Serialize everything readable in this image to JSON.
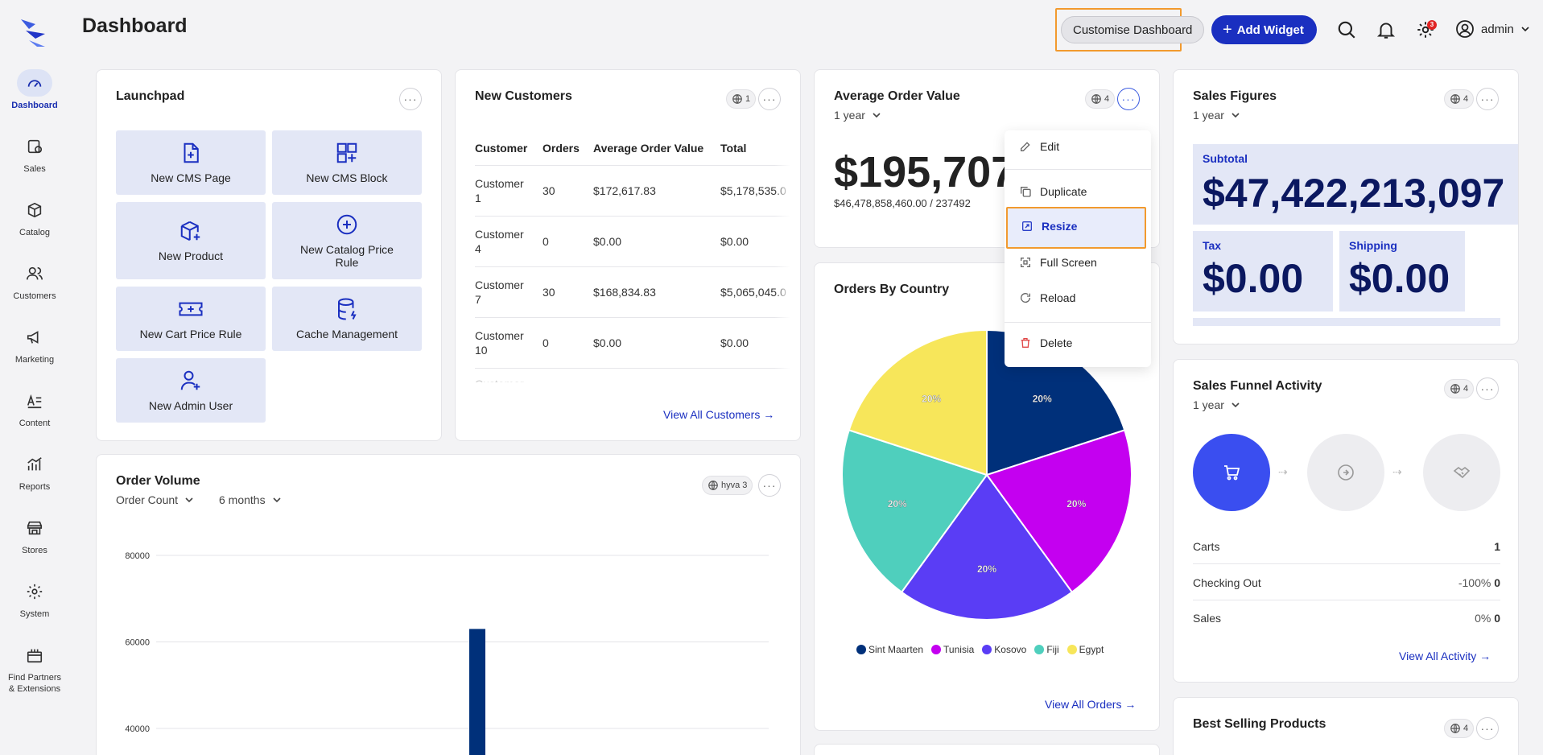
{
  "nav": {
    "items": [
      {
        "label": "Dashboard",
        "icon": "gauge-icon"
      },
      {
        "label": "Sales",
        "icon": "dollar-icon"
      },
      {
        "label": "Catalog",
        "icon": "box-icon"
      },
      {
        "label": "Customers",
        "icon": "users-icon"
      },
      {
        "label": "Marketing",
        "icon": "megaphone-icon"
      },
      {
        "label": "Content",
        "icon": "text-icon"
      },
      {
        "label": "Reports",
        "icon": "chart-icon"
      },
      {
        "label": "Stores",
        "icon": "store-icon"
      },
      {
        "label": "System",
        "icon": "gear-icon"
      },
      {
        "label": "Find Partners",
        "label2": "& Extensions",
        "icon": "gift-icon"
      }
    ]
  },
  "header": {
    "title": "Dashboard",
    "customise_label": "Customise Dashboard",
    "add_widget_label": "Add Widget",
    "notification_badge": "3",
    "user_name": "admin"
  },
  "launchpad": {
    "title": "Launchpad",
    "tiles": [
      "New CMS Page",
      "New CMS Block",
      "New Product",
      "New Catalog Price Rule",
      "New Cart Price Rule",
      "Cache Management",
      "New Admin User"
    ]
  },
  "new_customers": {
    "title": "New Customers",
    "scope_count": "1",
    "columns": [
      "Customer",
      "Orders",
      "Average Order Value",
      "Total"
    ],
    "rows": [
      [
        "Customer 1",
        "30",
        "$172,617.83",
        "$5,178,535.0"
      ],
      [
        "Customer 4",
        "0",
        "$0.00",
        "$0.00"
      ],
      [
        "Customer 7",
        "30",
        "$168,834.83",
        "$5,065,045.0"
      ],
      [
        "Customer 10",
        "0",
        "$0.00",
        "$0.00"
      ],
      [
        "Customer",
        "",
        "",
        ""
      ]
    ],
    "view_all": "View All Customers"
  },
  "aov": {
    "title": "Average Order Value",
    "scope_count": "4",
    "period": "1 year",
    "value": "$195,707",
    "sub": "$46,478,858,460.00 / 237492"
  },
  "context_menu": {
    "items": [
      "Edit",
      "Duplicate",
      "Resize",
      "Full Screen",
      "Reload",
      "Delete"
    ]
  },
  "orders_by_country": {
    "title": "Orders By Country",
    "view_all": "View All Orders"
  },
  "chart_data": [
    {
      "type": "pie",
      "title": "Orders By Country",
      "categories": [
        "Sint Maarten",
        "Tunisia",
        "Kosovo",
        "Fiji",
        "Egypt"
      ],
      "values": [
        20,
        20,
        20,
        20,
        20
      ],
      "labels": [
        "20%",
        "20%",
        "20%",
        "20%",
        "20%"
      ],
      "colors": [
        "#00307a",
        "#c400f0",
        "#5a3df5",
        "#4fcfbd",
        "#f7e65a"
      ],
      "legend": "bottom"
    },
    {
      "type": "bar",
      "title": "Order Volume",
      "yticks": [
        "80000",
        "60000",
        "40000"
      ],
      "ylim": [
        20000,
        80000
      ],
      "bar_value": 63000,
      "bar_color": "#00307a"
    }
  ],
  "order_volume": {
    "title": "Order Volume",
    "scope_label": "hyva 3",
    "metric": "Order Count",
    "period": "6 months"
  },
  "sales_figures": {
    "title": "Sales Figures",
    "scope_count": "4",
    "period": "1 year",
    "subtotal_label": "Subtotal",
    "subtotal_value": "$47,422,213,097",
    "tax_label": "Tax",
    "tax_value": "$0.00",
    "shipping_label": "Shipping",
    "shipping_value": "$0.00"
  },
  "funnel": {
    "title": "Sales Funnel Activity",
    "scope_count": "4",
    "period": "1 year",
    "rows": [
      {
        "label": "Carts",
        "pct": "",
        "value": "1"
      },
      {
        "label": "Checking Out",
        "pct": "-100%",
        "value": "0"
      },
      {
        "label": "Sales",
        "pct": "0%",
        "value": "0"
      }
    ],
    "view_all": "View All Activity"
  },
  "best_selling": {
    "title": "Best Selling Products",
    "scope_count": "4"
  }
}
